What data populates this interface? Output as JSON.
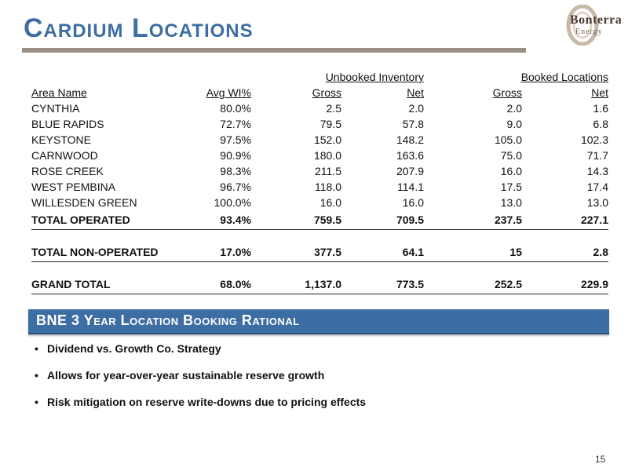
{
  "slide": {
    "title": "Cardium Locations",
    "logo_text": "Bonterra",
    "logo_sub": "Energy",
    "page_number": "15"
  },
  "table": {
    "group_headers": {
      "unbooked": "Unbooked Inventory",
      "booked": "Booked Locations"
    },
    "columns": [
      "Area Name",
      "Avg WI%",
      "Gross",
      "Net",
      "Gross",
      "Net"
    ],
    "rows": [
      [
        "CYNTHIA",
        "80.0%",
        "2.5",
        "2.0",
        "2.0",
        "1.6"
      ],
      [
        "BLUE RAPIDS",
        "72.7%",
        "79.5",
        "57.8",
        "9.0",
        "6.8"
      ],
      [
        "KEYSTONE",
        "97.5%",
        "152.0",
        "148.2",
        "105.0",
        "102.3"
      ],
      [
        "CARNWOOD",
        "90.9%",
        "180.0",
        "163.6",
        "75.0",
        "71.7"
      ],
      [
        "ROSE CREEK",
        "98.3%",
        "211.5",
        "207.9",
        "16.0",
        "14.3"
      ],
      [
        "WEST PEMBINA",
        "96.7%",
        "118.0",
        "114.1",
        "17.5",
        "17.4"
      ],
      [
        "WILLESDEN GREEN",
        "100.0%",
        "16.0",
        "16.0",
        "13.0",
        "13.0"
      ]
    ],
    "totals": [
      [
        "TOTAL OPERATED",
        "93.4%",
        "759.5",
        "709.5",
        "237.5",
        "227.1"
      ],
      [
        "TOTAL NON-OPERATED",
        "17.0%",
        "377.5",
        "64.1",
        "15",
        "2.8"
      ],
      [
        "GRAND TOTAL",
        "68.0%",
        "1,137.0",
        "773.5",
        "252.5",
        "229.9"
      ]
    ]
  },
  "section": {
    "banner": "BNE 3 Year Location Booking Rational",
    "bullets": [
      "Dividend vs. Growth Co. Strategy",
      "Allows for year-over-year sustainable reserve growth",
      "Risk mitigation on reserve write-downs due to pricing effects"
    ]
  },
  "colors": {
    "accent_blue": "#3d6ea3",
    "rule_gray": "#9a8f84"
  }
}
